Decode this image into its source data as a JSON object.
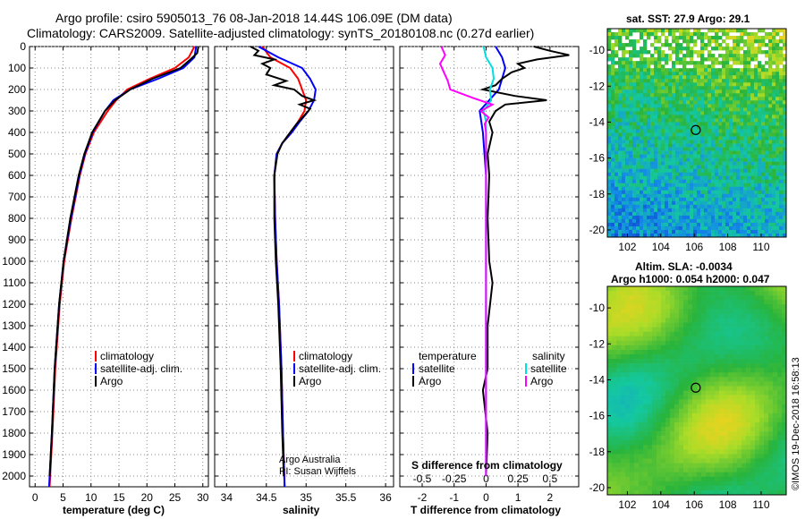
{
  "title": {
    "line1": "Argo profile: csiro 5905013_76 08-Jan-2018 14.44S 106.09E (DM data)",
    "line2": "Climatology: CARS2009. Satellite-adjusted climatology: synTS_20180108.nc (0.27d earlier)"
  },
  "colors": {
    "climatology": "#ff0000",
    "satellite": "#0000ff",
    "argo": "#000000",
    "sal_satellite": "#00e0e0",
    "sal_argo": "#ff00ff"
  },
  "credit": "©IMOS 19-Dec-2018 16:58:13",
  "chart_data": [
    {
      "type": "line",
      "name": "temperature-profile",
      "xlabel": "temperature (deg C)",
      "xlim": [
        -1,
        31
      ],
      "ylim": [
        2050,
        0
      ],
      "xticks": [
        "0",
        "5",
        "10",
        "15",
        "20",
        "25",
        "30"
      ],
      "yticks": [
        "0",
        "100",
        "200",
        "300",
        "400",
        "500",
        "600",
        "700",
        "800",
        "900",
        "1000",
        "1100",
        "1200",
        "1300",
        "1400",
        "1500",
        "1600",
        "1700",
        "1800",
        "1900",
        "2000"
      ],
      "legend": [
        "climatology",
        "satellite-adj. clim.",
        "Argo"
      ],
      "series": [
        {
          "name": "climatology",
          "depth": [
            0,
            50,
            100,
            150,
            200,
            250,
            300,
            400,
            500,
            600,
            800,
            1000,
            1200,
            1500,
            1800,
            2050
          ],
          "values": [
            28.5,
            27.5,
            25,
            20.5,
            16.5,
            14.5,
            13,
            10.5,
            9,
            8,
            6.5,
            5.2,
            4.4,
            3.6,
            3.1,
            2.6
          ]
        },
        {
          "name": "satellite-adj. clim.",
          "depth": [
            0,
            50,
            100,
            150,
            200,
            250,
            300,
            400,
            500,
            600,
            800,
            1000,
            1200,
            1500,
            1800,
            2050
          ],
          "values": [
            28.8,
            28.5,
            26.5,
            22,
            17,
            14,
            12.5,
            10.3,
            8.9,
            7.9,
            6.4,
            5.1,
            4.3,
            3.5,
            3.0,
            2.5
          ]
        },
        {
          "name": "Argo",
          "depth": [
            0,
            30,
            60,
            100,
            150,
            200,
            250,
            300,
            400,
            500,
            600,
            800,
            1000,
            1200,
            1500,
            1800,
            2000
          ],
          "values": [
            29.2,
            29,
            27.8,
            26,
            21,
            17,
            14.3,
            12.5,
            10.2,
            8.8,
            7.8,
            6.3,
            5.1,
            4.3,
            3.5,
            3.0,
            2.6
          ]
        }
      ]
    },
    {
      "type": "line",
      "name": "salinity-profile",
      "xlabel": "salinity",
      "xlim": [
        33.85,
        36.1
      ],
      "ylim": [
        2050,
        0
      ],
      "xticks": [
        "34",
        "34.5",
        "35",
        "35.5",
        "36"
      ],
      "legend": [
        "climatology",
        "satellite-adj. clim.",
        "Argo"
      ],
      "annotation": [
        "Argo Australia",
        "PI: Susan Wijffels"
      ],
      "series": [
        {
          "name": "climatology",
          "depth": [
            0,
            50,
            100,
            150,
            200,
            250,
            300,
            350,
            400,
            450,
            500,
            600,
            800,
            1000,
            1200,
            1500,
            1800,
            2050
          ],
          "values": [
            34.45,
            34.55,
            34.8,
            34.9,
            34.95,
            35.0,
            34.98,
            34.9,
            34.82,
            34.7,
            34.63,
            34.6,
            34.61,
            34.63,
            34.66,
            34.69,
            34.71,
            34.73
          ]
        },
        {
          "name": "satellite-adj. clim.",
          "depth": [
            0,
            50,
            100,
            150,
            200,
            250,
            300,
            350,
            400,
            450,
            500,
            600,
            800,
            1000,
            1200,
            1500,
            1800,
            2050
          ],
          "values": [
            34.4,
            34.65,
            34.95,
            35.05,
            35.12,
            35.1,
            35.03,
            34.92,
            34.82,
            34.7,
            34.63,
            34.6,
            34.61,
            34.63,
            34.66,
            34.69,
            34.71,
            34.73
          ]
        },
        {
          "name": "Argo",
          "depth": [
            0,
            20,
            40,
            60,
            80,
            100,
            130,
            160,
            180,
            200,
            230,
            250,
            270,
            290,
            320,
            360,
            400,
            450,
            500,
            600,
            800,
            1000,
            1200,
            1500,
            1800,
            2000
          ],
          "values": [
            34.3,
            34.4,
            34.35,
            34.6,
            34.45,
            34.55,
            34.5,
            34.75,
            34.6,
            34.85,
            34.95,
            35.1,
            34.92,
            35.05,
            34.98,
            34.88,
            34.8,
            34.7,
            34.64,
            34.6,
            34.6,
            34.62,
            34.65,
            34.68,
            34.7,
            34.72
          ]
        }
      ]
    },
    {
      "type": "line",
      "name": "difference-profile",
      "xlabel": "T difference from climatology",
      "xlabel2": "S difference from climatology",
      "xlim": [
        -2.7,
        2.9
      ],
      "ylim": [
        2050,
        0
      ],
      "xticks": [
        "-2",
        "-1",
        "0",
        "1",
        "2"
      ],
      "xticks2": [
        "-0.5",
        "-0.25",
        "0",
        "0.25",
        "0.5"
      ],
      "legend_temperature": [
        "temperature",
        "satellite",
        "Argo"
      ],
      "legend_salinity": [
        "salinity",
        "satellite",
        "Argo"
      ],
      "series": [
        {
          "name": "T satellite",
          "depth": [
            0,
            50,
            100,
            200,
            300,
            400,
            600,
            1000,
            2000
          ],
          "values": [
            0.3,
            0.5,
            0.6,
            0.4,
            -0.2,
            -0.1,
            0,
            0,
            0
          ]
        },
        {
          "name": "T Argo",
          "depth": [
            0,
            20,
            40,
            60,
            80,
            100,
            120,
            150,
            180,
            200,
            230,
            250,
            270,
            300,
            350,
            400,
            500,
            600,
            800,
            1000,
            1100,
            1300,
            1500,
            1600,
            1800,
            2000
          ],
          "values": [
            1.5,
            2.0,
            2.6,
            1.6,
            1.0,
            1.2,
            0.8,
            0.5,
            0.3,
            -0.1,
            0.9,
            1.9,
            0.6,
            0.3,
            0.1,
            0.2,
            0.05,
            0.1,
            0.05,
            0.1,
            0.2,
            0.05,
            0.05,
            -0.1,
            0.05,
            0
          ]
        },
        {
          "name": "S satellite",
          "depth": [
            0,
            50,
            100,
            150,
            200,
            250,
            300,
            350,
            400,
            600,
            1000,
            2000
          ],
          "values": [
            -0.02,
            0.0,
            0.05,
            0.06,
            0.03,
            0.04,
            -0.02,
            0.0,
            0.0,
            0.0,
            0.0,
            0.0
          ]
        },
        {
          "name": "S Argo",
          "depth": [
            0,
            40,
            80,
            120,
            160,
            200,
            240,
            270,
            300,
            330,
            360,
            400,
            600,
            1000,
            2000
          ],
          "values": [
            -0.35,
            -0.32,
            -0.36,
            -0.33,
            -0.3,
            -0.28,
            -0.1,
            0.05,
            -0.04,
            0.02,
            -0.01,
            0,
            0,
            0,
            0
          ]
        }
      ]
    },
    {
      "type": "heatmap",
      "name": "sst-map",
      "title": "sat. SST: 27.9 Argo: 29.1",
      "xlim": [
        100.8,
        111.5
      ],
      "ylim": [
        -20.4,
        -8.8
      ],
      "xticks": [
        "102",
        "104",
        "106",
        "108",
        "110"
      ],
      "yticks": [
        "-10",
        "-12",
        "-14",
        "-16",
        "-18",
        "-20"
      ],
      "marker_lon": 106.09,
      "marker_lat": -14.44
    },
    {
      "type": "heatmap",
      "name": "sla-map",
      "title": "Altim. SLA: -0.0034",
      "subtitle": "Argo h1000: 0.054 h2000: 0.047",
      "xlim": [
        100.8,
        111.5
      ],
      "ylim": [
        -20.4,
        -8.8
      ],
      "xticks": [
        "102",
        "104",
        "106",
        "108",
        "110"
      ],
      "yticks": [
        "-10",
        "-12",
        "-14",
        "-16",
        "-18",
        "-20"
      ],
      "marker_lon": 106.09,
      "marker_lat": -14.44
    }
  ]
}
